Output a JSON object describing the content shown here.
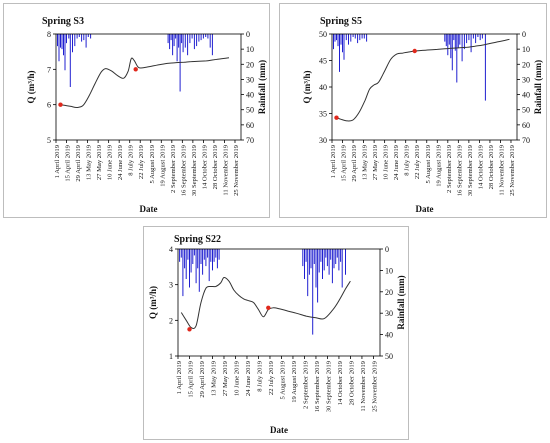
{
  "x_tick_labels": [
    "1 April 2019",
    "15 April 2019",
    "29 April 2019",
    "13 May 2019",
    "27 May 2019",
    "10 June 2019",
    "24 June 2019",
    "8 July 2019",
    "22 July 2019",
    "5 August 2019",
    "19 August 2019",
    "2 September 2019",
    "16 September 2019",
    "30 September 2019",
    "14 October 2019",
    "28 October 2019",
    "11 November 2019",
    "25 November 2019"
  ],
  "chart_data": [
    {
      "type": "line",
      "title": "Spring S3",
      "xlabel": "Date",
      "ylabel": "Q (m³/h)",
      "y2label": "Rainfall (mm)",
      "xlim": [
        0,
        246
      ],
      "ylim": [
        5,
        8
      ],
      "y2lim": [
        0,
        70
      ],
      "y2_inverted": true,
      "yticks": [
        5,
        6,
        7,
        8
      ],
      "y2ticks": [
        0,
        10,
        20,
        30,
        40,
        50,
        60,
        70
      ],
      "grid": false,
      "legend": "none",
      "discharge": {
        "x": [
          6,
          12,
          20,
          28,
          36,
          44,
          52,
          60,
          66,
          74,
          82,
          90,
          96,
          100,
          104,
          110,
          120,
          130,
          140,
          150,
          160,
          170,
          180,
          190,
          200,
          210,
          220,
          230
        ],
        "y": [
          6.0,
          5.98,
          5.95,
          5.92,
          5.98,
          6.25,
          6.6,
          6.92,
          7.02,
          6.95,
          6.82,
          6.75,
          6.95,
          7.3,
          7.25,
          7.05,
          7.06,
          7.1,
          7.14,
          7.17,
          7.19,
          7.2,
          7.22,
          7.23,
          7.24,
          7.27,
          7.3,
          7.33
        ]
      },
      "sample_points": [
        {
          "x": 6,
          "y": 6.0
        },
        {
          "x": 106,
          "y": 7.0
        }
      ],
      "rainfall": {
        "x": [
          2,
          4,
          6,
          8,
          10,
          12,
          14,
          17,
          19,
          22,
          25,
          28,
          31,
          34,
          37,
          40,
          43,
          46,
          149,
          151,
          153,
          155,
          157,
          159,
          161,
          163,
          165,
          167,
          169,
          172,
          175,
          178,
          181,
          184,
          187,
          190,
          193,
          196,
          199,
          202,
          205,
          208
        ],
        "y": [
          8,
          18,
          9,
          10,
          14,
          24,
          6,
          3,
          35,
          12,
          8,
          3,
          2,
          5,
          4,
          9,
          2,
          3,
          6,
          10,
          4,
          14,
          8,
          3,
          18,
          9,
          38,
          6,
          12,
          9,
          14,
          6,
          3,
          10,
          8,
          5,
          4,
          3,
          2,
          3,
          9,
          14
        ]
      }
    },
    {
      "type": "line",
      "title": "Spring S5",
      "xlabel": "Date",
      "ylabel": "Q (m³/h)",
      "y2label": "Rainfall (mm)",
      "xlim": [
        0,
        246
      ],
      "ylim": [
        30,
        50
      ],
      "y2lim": [
        0,
        70
      ],
      "y2_inverted": true,
      "yticks": [
        30,
        35,
        40,
        45,
        50
      ],
      "y2ticks": [
        0,
        10,
        20,
        30,
        40,
        50,
        60,
        70
      ],
      "grid": false,
      "legend": "none",
      "discharge": {
        "x": [
          6,
          12,
          20,
          28,
          36,
          44,
          50,
          56,
          62,
          70,
          78,
          86,
          94,
          102,
          110,
          120,
          130,
          140,
          150,
          160,
          170,
          180,
          190,
          200,
          210,
          220,
          230,
          236
        ],
        "y": [
          34.2,
          33.9,
          33.6,
          33.8,
          35.2,
          37.5,
          39.6,
          40.4,
          40.9,
          43.0,
          45.2,
          46.2,
          46.4,
          46.6,
          46.8,
          46.9,
          47.0,
          47.1,
          47.2,
          47.3,
          47.4,
          47.5,
          47.7,
          47.9,
          48.2,
          48.5,
          48.8,
          49.0
        ]
      },
      "sample_points": [
        {
          "x": 6,
          "y": 34.2
        },
        {
          "x": 110,
          "y": 46.8
        }
      ],
      "rainfall": {
        "x": [
          2,
          4,
          6,
          8,
          10,
          12,
          14,
          16,
          19,
          22,
          25,
          28,
          31,
          34,
          37,
          40,
          43,
          46,
          150,
          152,
          154,
          156,
          158,
          160,
          162,
          164,
          166,
          168,
          170,
          173,
          176,
          179,
          182,
          185,
          188,
          191,
          194,
          197,
          200,
          204
        ],
        "y": [
          10,
          5,
          4,
          8,
          25,
          7,
          12,
          17,
          4,
          7,
          5,
          2,
          3,
          6,
          4,
          3,
          3,
          5,
          5,
          8,
          14,
          7,
          16,
          24,
          4,
          11,
          32,
          9,
          7,
          18,
          10,
          6,
          4,
          12,
          3,
          6,
          2,
          4,
          3,
          44
        ]
      }
    },
    {
      "type": "line",
      "title": "Spring S22",
      "xlabel": "Date",
      "ylabel": "Q (m³/h)",
      "y2label": "Rainfall (mm)",
      "xlim": [
        0,
        246
      ],
      "ylim": [
        1,
        4
      ],
      "y2lim": [
        0,
        50
      ],
      "y2_inverted": true,
      "yticks": [
        1,
        2,
        3,
        4
      ],
      "y2ticks": [
        0,
        10,
        20,
        30,
        40,
        50
      ],
      "grid": false,
      "legend": "none",
      "discharge": {
        "x": [
          4,
          10,
          16,
          22,
          28,
          34,
          40,
          46,
          52,
          56,
          62,
          68,
          74,
          80,
          86,
          92,
          98,
          104,
          110,
          116,
          124,
          134,
          144,
          156,
          168,
          178,
          188,
          196,
          204,
          210
        ],
        "y": [
          2.22,
          2.0,
          1.8,
          1.85,
          2.5,
          2.9,
          2.95,
          2.95,
          3.05,
          3.2,
          3.1,
          2.85,
          2.7,
          2.6,
          2.55,
          2.5,
          2.3,
          2.1,
          2.3,
          2.35,
          2.32,
          2.26,
          2.2,
          2.12,
          2.07,
          2.05,
          2.28,
          2.55,
          2.88,
          3.1
        ]
      },
      "sample_points": [
        {
          "x": 14,
          "y": 1.75
        },
        {
          "x": 110,
          "y": 2.35
        }
      ],
      "rainfall": {
        "x": [
          2,
          4,
          6,
          8,
          10,
          12,
          14,
          16,
          18,
          20,
          22,
          24,
          26,
          28,
          30,
          32,
          34,
          36,
          38,
          40,
          42,
          44,
          46,
          48,
          50,
          152,
          154,
          156,
          158,
          160,
          162,
          164,
          166,
          168,
          170,
          172,
          174,
          176,
          178,
          180,
          182,
          184,
          186,
          188,
          190,
          192,
          194,
          196,
          198,
          200,
          204
        ],
        "y": [
          6,
          4,
          22,
          9,
          14,
          5,
          18,
          11,
          7,
          3,
          16,
          9,
          20,
          7,
          12,
          5,
          8,
          4,
          15,
          6,
          10,
          6,
          4,
          9,
          5,
          8,
          14,
          6,
          22,
          12,
          9,
          40,
          7,
          18,
          25,
          11,
          6,
          14,
          10,
          4,
          8,
          12,
          5,
          16,
          9,
          7,
          4,
          10,
          6,
          18,
          12
        ]
      }
    }
  ]
}
